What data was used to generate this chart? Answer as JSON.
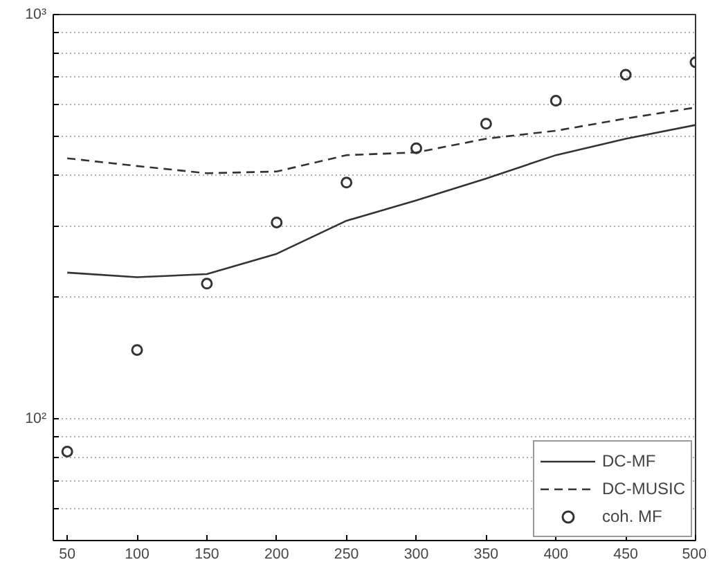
{
  "chart_data": {
    "type": "line",
    "x": [
      50,
      100,
      150,
      200,
      250,
      300,
      350,
      400,
      450,
      500
    ],
    "series": [
      {
        "name": "DC-MF",
        "color": "#333333",
        "line_style": "solid",
        "marker": "none",
        "values": [
          230,
          224,
          228,
          256,
          309,
          347,
          393,
          449,
          493,
          533
        ]
      },
      {
        "name": "DC-MUSIC",
        "color": "#333333",
        "line_style": "dashed",
        "marker": "none",
        "values": [
          441,
          422,
          405,
          409,
          449,
          456,
          493,
          516,
          553,
          589
        ]
      },
      {
        "name": "coh. MF",
        "type": "scatter",
        "color": "#333333",
        "marker": "circle",
        "values": [
          83,
          148,
          216,
          306,
          384,
          467,
          537,
          612,
          710,
          762
        ]
      }
    ],
    "log": "y",
    "xlim": [
      40,
      500
    ],
    "ylim": [
      50,
      1000
    ],
    "xticks": [
      50,
      100,
      150,
      200,
      250,
      300,
      350,
      400,
      450,
      500
    ],
    "yticks": [
      {
        "value": 50,
        "label": null
      },
      {
        "value": 60,
        "label": null
      },
      {
        "value": 70,
        "label": null
      },
      {
        "value": 80,
        "label": null
      },
      {
        "value": 90,
        "label": null
      },
      {
        "value": 100,
        "label": "10²"
      },
      {
        "value": 200,
        "label": null
      },
      {
        "value": 300,
        "label": null
      },
      {
        "value": 400,
        "label": null
      },
      {
        "value": 500,
        "label": null
      },
      {
        "value": 600,
        "label": null
      },
      {
        "value": 700,
        "label": null
      },
      {
        "value": 800,
        "label": null
      },
      {
        "value": 900,
        "label": null
      },
      {
        "value": 1000,
        "label": "10³"
      }
    ],
    "grid": "y",
    "legend": "bottom right"
  }
}
